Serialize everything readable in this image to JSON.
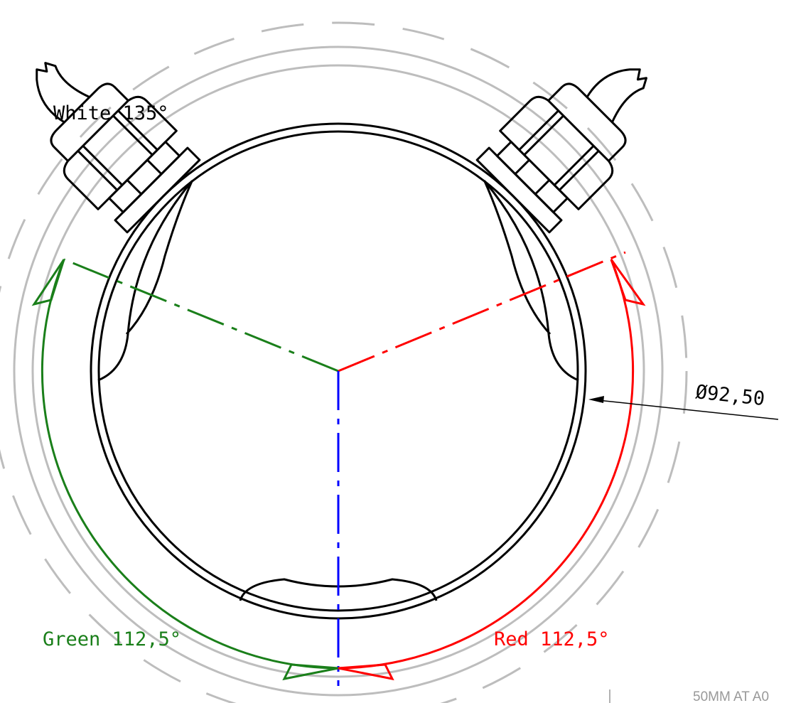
{
  "labels": {
    "white": "White 135°",
    "diameter": "Ø92,50",
    "green": "Green 112,5°",
    "red": "Red 112,5°",
    "scale": "50MM AT A0"
  }
}
